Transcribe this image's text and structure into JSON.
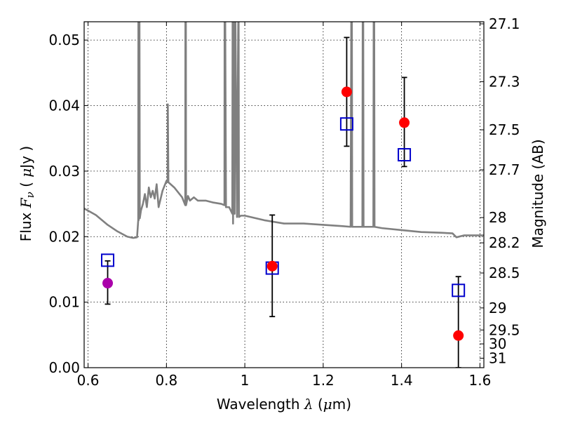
{
  "chart_data": {
    "type": "scatter",
    "title": "",
    "xlabel": "Wavelength  λ (μm)",
    "ylabel": "Flux  Fν  ( μJy )",
    "ylabel_right": "Magnitude (AB)",
    "xlim": [
      0.59,
      1.61
    ],
    "ylim": [
      0.0,
      0.0528
    ],
    "grid": true,
    "x_ticks": [
      0.6,
      0.8,
      1.0,
      1.2,
      1.4,
      1.6
    ],
    "x_tick_labels": [
      "0.6",
      "0.8",
      "1",
      "1.2",
      "1.4",
      "1.6"
    ],
    "y_ticks": [
      0.0,
      0.01,
      0.02,
      0.03,
      0.04,
      0.05
    ],
    "y_tick_labels": [
      "0.00",
      "0.01",
      "0.02",
      "0.03",
      "0.04",
      "0.05"
    ],
    "right_ticks": [
      "27.1",
      "27.3",
      "27.5",
      "27.7",
      "28",
      "28.2",
      "28.5",
      "29",
      "29.5",
      "30",
      "31"
    ],
    "colors": {
      "observed": "#ff0000",
      "observed_highlight": "#aa00aa",
      "model_box": "#0000cc",
      "spectrum": "#808080",
      "errorbar": "#000000"
    },
    "series": [
      {
        "kind": "spectrum",
        "x": [
          0.59,
          0.62,
          0.65,
          0.675,
          0.7,
          0.715,
          0.725,
          0.728,
          0.7285,
          0.729,
          0.73,
          0.731,
          0.732,
          0.735,
          0.74,
          0.745,
          0.75,
          0.755,
          0.76,
          0.765,
          0.77,
          0.775,
          0.78,
          0.79,
          0.8,
          0.803,
          0.8035,
          0.805,
          0.82,
          0.84,
          0.848,
          0.8485,
          0.8495,
          0.85,
          0.855,
          0.86,
          0.87,
          0.88,
          0.9,
          0.92,
          0.94,
          0.948,
          0.9485,
          0.9495,
          0.952,
          0.96,
          0.968,
          0.969,
          0.97,
          0.972,
          0.974,
          0.975,
          0.98,
          0.984,
          0.985,
          0.99,
          1.0,
          1.05,
          1.1,
          1.15,
          1.2,
          1.25,
          1.27,
          1.272,
          1.273,
          1.274,
          1.3,
          1.301,
          1.302,
          1.303,
          1.328,
          1.329,
          1.33,
          1.331,
          1.35,
          1.4,
          1.45,
          1.5,
          1.53,
          1.54,
          1.56,
          1.6,
          1.61
        ],
        "y": [
          0.0243,
          0.0233,
          0.0218,
          0.0208,
          0.02,
          0.0198,
          0.0199,
          0.0225,
          0.06,
          0.0225,
          0.023,
          0.06,
          0.0228,
          0.024,
          0.025,
          0.0265,
          0.0245,
          0.0275,
          0.026,
          0.027,
          0.0258,
          0.028,
          0.0245,
          0.027,
          0.0285,
          0.0283,
          0.0402,
          0.0283,
          0.0275,
          0.026,
          0.0248,
          0.06,
          0.06,
          0.0248,
          0.0262,
          0.0255,
          0.026,
          0.0255,
          0.0255,
          0.0252,
          0.025,
          0.0248,
          0.06,
          0.06,
          0.0245,
          0.0245,
          0.0235,
          0.06,
          0.022,
          0.06,
          0.0235,
          0.06,
          0.023,
          0.06,
          0.023,
          0.0232,
          0.0232,
          0.0225,
          0.022,
          0.022,
          0.0218,
          0.0216,
          0.0215,
          0.06,
          0.06,
          0.0215,
          0.0215,
          0.06,
          0.06,
          0.0215,
          0.0215,
          0.06,
          0.06,
          0.0215,
          0.0213,
          0.021,
          0.0207,
          0.0206,
          0.0205,
          0.0199,
          0.0202,
          0.0202,
          0.0202
        ]
      },
      {
        "kind": "observed",
        "x": [
          0.65,
          1.07,
          1.26,
          1.407,
          1.545
        ],
        "y": [
          0.0129,
          0.0155,
          0.0421,
          0.0374,
          0.0049
        ],
        "yerr_low": [
          0.0097,
          0.0078,
          0.0338,
          0.0307,
          0.0
        ],
        "yerr_high": [
          0.0163,
          0.0233,
          0.0504,
          0.0443,
          0.0139
        ],
        "color_keys": [
          "observed_highlight",
          "observed",
          "observed",
          "observed",
          "observed"
        ]
      },
      {
        "kind": "model_box",
        "x": [
          0.65,
          1.07,
          1.26,
          1.407,
          1.545
        ],
        "y": [
          0.0164,
          0.0152,
          0.0372,
          0.0325,
          0.0118
        ]
      }
    ]
  }
}
